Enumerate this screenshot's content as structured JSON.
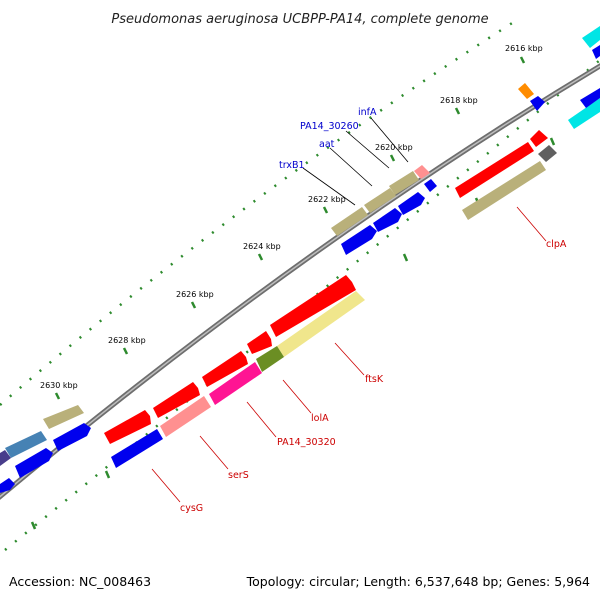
{
  "title": "Pseudomonas aeruginosa UCBPP-PA14, complete genome",
  "footer": {
    "accession": "Accession: NC_008463",
    "topology": "Topology: circular; Length: 6,537,648 bp; Genes: 5,964"
  },
  "ticks": [
    "2616 kbp",
    "2618 kbp",
    "2620 kbp",
    "2622 kbp",
    "2624 kbp",
    "2626 kbp",
    "2628 kbp",
    "2630 kbp"
  ],
  "genes_forward": [
    "infA",
    "PA14_30260",
    "aat",
    "trxB1"
  ],
  "genes_reverse": [
    "clpA",
    "ftsK",
    "lolA",
    "PA14_30320",
    "serS",
    "cysG"
  ],
  "colors": {
    "backbone": "#808080",
    "tick_green": "#2e8b2e",
    "forward_label": "#0000cc",
    "reverse_label": "#cc0000",
    "red_gene": "#ff0000",
    "blue_gene": "#0000ee",
    "olive_gene": "#b9b07a",
    "cyan_gene": "#00e5e5",
    "orange_gene": "#ff8c00",
    "yellow_gene": "#f0e68c",
    "magenta_gene": "#ff1493",
    "pink_gene": "#ff9090",
    "dark_green_gene": "#6b8e23",
    "grey_gene": "#606060",
    "steel_gene": "#4682b4"
  }
}
